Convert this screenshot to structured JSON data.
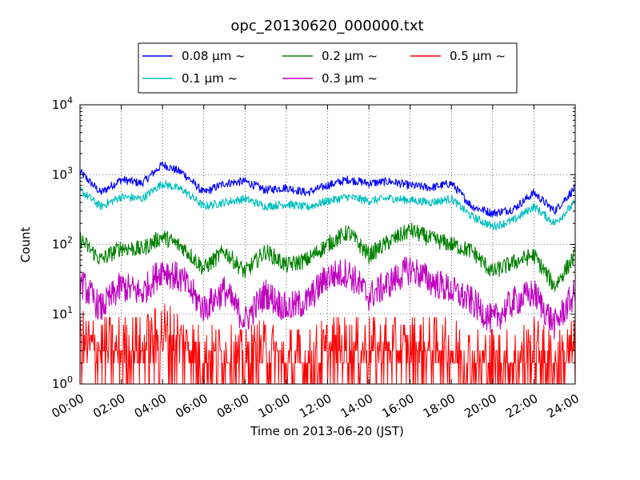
{
  "chart_data": {
    "type": "line",
    "title": "opc_20130620_000000.txt",
    "xlabel": "Time on 2013-06-20 (JST)",
    "ylabel": "Count",
    "yscale": "log",
    "ylim": [
      1,
      10000
    ],
    "xlim_hours": [
      0,
      24
    ],
    "x_ticks": [
      "00:00",
      "02:00",
      "04:00",
      "06:00",
      "08:00",
      "10:00",
      "12:00",
      "14:00",
      "16:00",
      "18:00",
      "20:00",
      "22:00",
      "24:00"
    ],
    "y_ticks": [
      {
        "base": "10",
        "exp": "0"
      },
      {
        "base": "10",
        "exp": "1"
      },
      {
        "base": "10",
        "exp": "2"
      },
      {
        "base": "10",
        "exp": "3"
      },
      {
        "base": "10",
        "exp": "4"
      }
    ],
    "grid": true,
    "legend_position": "top",
    "legend": [
      {
        "label": "0.08 μm ~",
        "color": "#0000ff"
      },
      {
        "label": "0.1 μm ~",
        "color": "#00bfbf"
      },
      {
        "label": "0.2 μm ~",
        "color": "#008000"
      },
      {
        "label": "0.3 μm ~",
        "color": "#bf00bf"
      },
      {
        "label": "0.5 μm ~",
        "color": "#ff0000"
      }
    ],
    "series": [
      {
        "name": "0.08 μm ~",
        "color": "#0000ff",
        "x": [
          0,
          1,
          2,
          3,
          4,
          5,
          6,
          7,
          8,
          9,
          10,
          11,
          12,
          13,
          14,
          15,
          16,
          17,
          18,
          19,
          20,
          21,
          22,
          23,
          24
        ],
        "y": [
          1100,
          550,
          850,
          750,
          1400,
          1050,
          550,
          750,
          800,
          600,
          650,
          550,
          700,
          850,
          750,
          800,
          700,
          650,
          750,
          350,
          280,
          320,
          550,
          300,
          650
        ]
      },
      {
        "name": "0.1 μm ~",
        "color": "#00bfbf",
        "x": [
          0,
          1,
          2,
          3,
          4,
          5,
          6,
          7,
          8,
          9,
          10,
          11,
          12,
          13,
          14,
          15,
          16,
          17,
          18,
          19,
          20,
          21,
          22,
          23,
          24
        ],
        "y": [
          600,
          350,
          480,
          450,
          750,
          600,
          350,
          400,
          450,
          350,
          380,
          340,
          420,
          480,
          420,
          460,
          430,
          400,
          450,
          250,
          180,
          220,
          350,
          200,
          400
        ]
      },
      {
        "name": "0.2 μm ~",
        "color": "#008000",
        "x": [
          0,
          1,
          2,
          3,
          4,
          5,
          6,
          7,
          8,
          9,
          10,
          11,
          12,
          13,
          14,
          15,
          16,
          17,
          18,
          19,
          20,
          21,
          22,
          23,
          24
        ],
        "y": [
          120,
          60,
          90,
          85,
          130,
          90,
          45,
          80,
          40,
          80,
          50,
          60,
          100,
          150,
          70,
          110,
          160,
          120,
          100,
          80,
          40,
          55,
          70,
          25,
          70
        ]
      },
      {
        "name": "0.3 μm ~",
        "color": "#bf00bf",
        "x": [
          0,
          1,
          2,
          3,
          4,
          5,
          6,
          7,
          8,
          9,
          10,
          11,
          12,
          13,
          14,
          15,
          16,
          17,
          18,
          19,
          20,
          21,
          22,
          23,
          24
        ],
        "y": [
          30,
          12,
          25,
          20,
          45,
          30,
          12,
          22,
          8,
          20,
          12,
          15,
          35,
          40,
          18,
          28,
          45,
          30,
          22,
          15,
          8,
          15,
          20,
          7,
          20
        ]
      },
      {
        "name": "0.5 μm ~",
        "color": "#ff0000",
        "x": [
          0,
          1,
          2,
          3,
          4,
          5,
          6,
          7,
          8,
          9,
          10,
          11,
          12,
          13,
          14,
          15,
          16,
          17,
          18,
          19,
          20,
          21,
          22,
          23,
          24
        ],
        "y": [
          4,
          3,
          3,
          3,
          5,
          4,
          2,
          3,
          2,
          3,
          2,
          2,
          3,
          3,
          3,
          3,
          3,
          3,
          3,
          2,
          2,
          2,
          3,
          2,
          3
        ]
      }
    ]
  }
}
